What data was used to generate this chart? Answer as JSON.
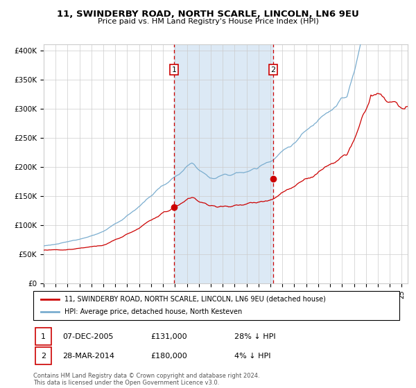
{
  "title": "11, SWINDERBY ROAD, NORTH SCARLE, LINCOLN, LN6 9EU",
  "subtitle": "Price paid vs. HM Land Registry's House Price Index (HPI)",
  "ylabel_ticks": [
    "£0",
    "£50K",
    "£100K",
    "£150K",
    "£200K",
    "£250K",
    "£300K",
    "£350K",
    "£400K"
  ],
  "ytick_vals": [
    0,
    50000,
    100000,
    150000,
    200000,
    250000,
    300000,
    350000,
    400000
  ],
  "ylim": [
    0,
    410000
  ],
  "xlim_start": 1995.0,
  "xlim_end": 2025.5,
  "shade_x1": 2005.92,
  "shade_x2": 2014.23,
  "vline1_x": 2005.92,
  "vline2_x": 2014.23,
  "point1_x": 2005.92,
  "point1_y": 131000,
  "point2_x": 2014.23,
  "point2_y": 180000,
  "label1": "1",
  "label2": "2",
  "legend_line1": "11, SWINDERBY ROAD, NORTH SCARLE, LINCOLN, LN6 9EU (detached house)",
  "legend_line2": "HPI: Average price, detached house, North Kesteven",
  "ann1_date": "07-DEC-2005",
  "ann1_price": "£131,000",
  "ann1_hpi": "28% ↓ HPI",
  "ann2_date": "28-MAR-2014",
  "ann2_price": "£180,000",
  "ann2_hpi": "4% ↓ HPI",
  "footer": "Contains HM Land Registry data © Crown copyright and database right 2024.\nThis data is licensed under the Open Government Licence v3.0.",
  "red_color": "#cc0000",
  "blue_color": "#7aadcf",
  "shade_color": "#dce9f5",
  "bg_color": "#ffffff",
  "grid_color": "#cccccc"
}
